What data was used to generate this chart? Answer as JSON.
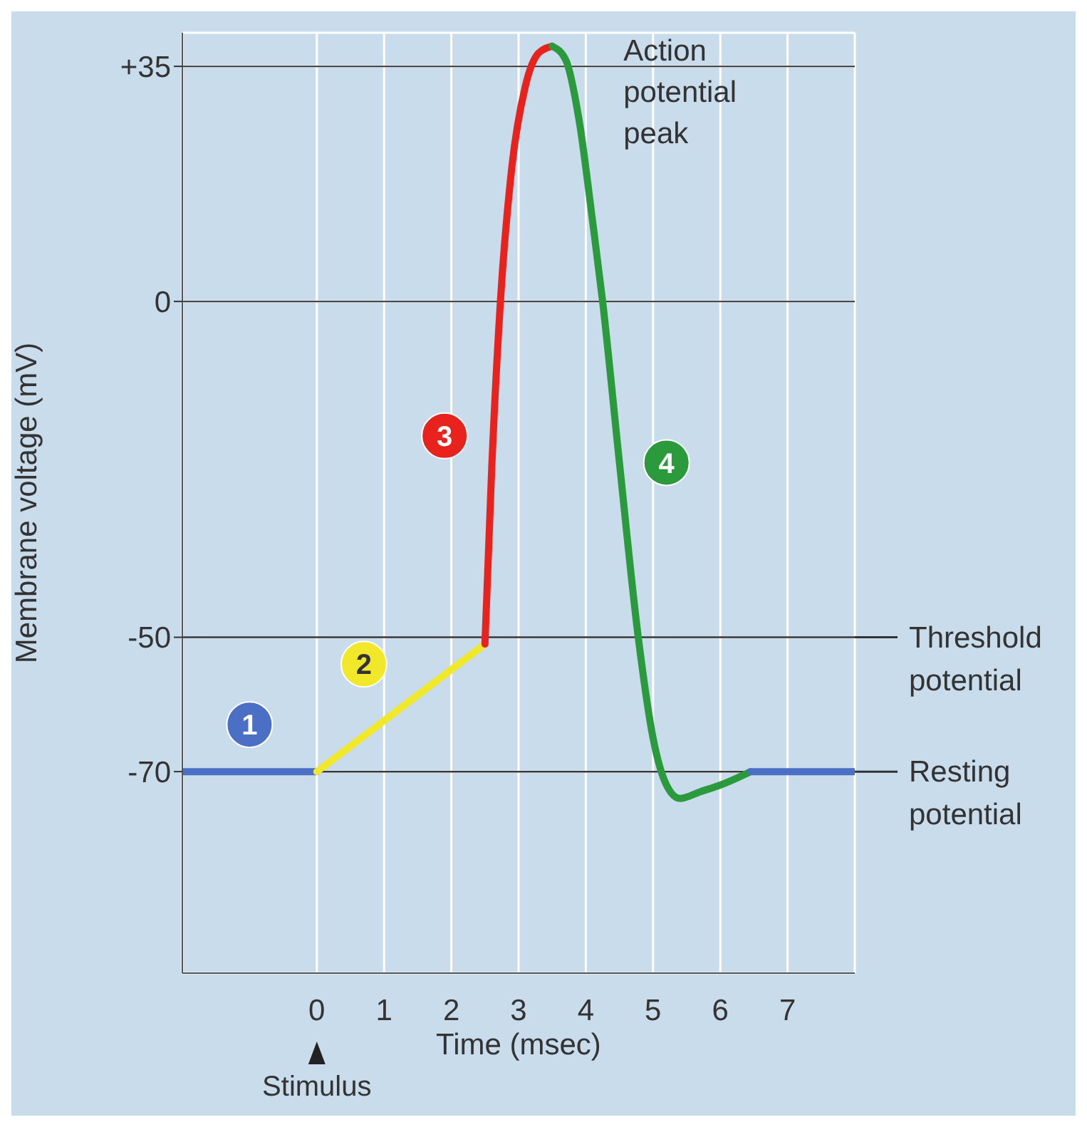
{
  "chart_data": {
    "type": "line",
    "xlabel": "Time (msec)",
    "ylabel": "Membrane voltage (mV)",
    "xlim": [
      -2,
      8
    ],
    "xticks": [
      0,
      1,
      2,
      3,
      4,
      5,
      6,
      7
    ],
    "ylim": [
      -100,
      40
    ],
    "yticks": [
      {
        "value": 35,
        "label": "+35"
      },
      0,
      -50,
      -70
    ],
    "grid": true,
    "line_style": "solid",
    "marker": "none",
    "series": [
      {
        "color": "#4a6fc4",
        "x": [
          -2,
          0
        ],
        "values": [
          -70,
          -70
        ]
      },
      {
        "color": "#f2e82a",
        "x": [
          0,
          2.5
        ],
        "values": [
          -70,
          -51
        ]
      },
      {
        "color": "#e8221c",
        "x": [
          2.5,
          2.6,
          2.73,
          2.9,
          3.1,
          3.3,
          3.5
        ],
        "values": [
          -51,
          -25,
          0,
          20,
          32,
          37,
          38
        ]
      },
      {
        "color": "#2a9a3c",
        "x": [
          3.5,
          3.7,
          3.9,
          4.1,
          4.25,
          4.5,
          4.78,
          5.0,
          5.2,
          5.4,
          5.7,
          6.0,
          6.45
        ],
        "values": [
          38,
          36,
          27,
          12,
          0,
          -24,
          -50,
          -65,
          -72,
          -74,
          -73,
          -72,
          -70
        ]
      },
      {
        "color": "#4a6fc4",
        "x": [
          6.45,
          8
        ],
        "values": [
          -70,
          -70
        ]
      }
    ],
    "ref_lines": [
      {
        "axis": "y",
        "value": -50,
        "label": "Threshold potential"
      },
      {
        "axis": "y",
        "value": -70,
        "label": "Resting potential"
      }
    ],
    "annotations": [
      {
        "text": "1",
        "x": -1,
        "y": -63
      },
      {
        "text": "2",
        "x": 0.7,
        "y": -54
      },
      {
        "text": "3",
        "x": 1.9,
        "y": -20
      },
      {
        "text": "4",
        "x": 5.2,
        "y": -24
      },
      {
        "text": "Action potential peak",
        "x": 3.5,
        "y": 38
      },
      "Stimulus"
    ]
  }
}
